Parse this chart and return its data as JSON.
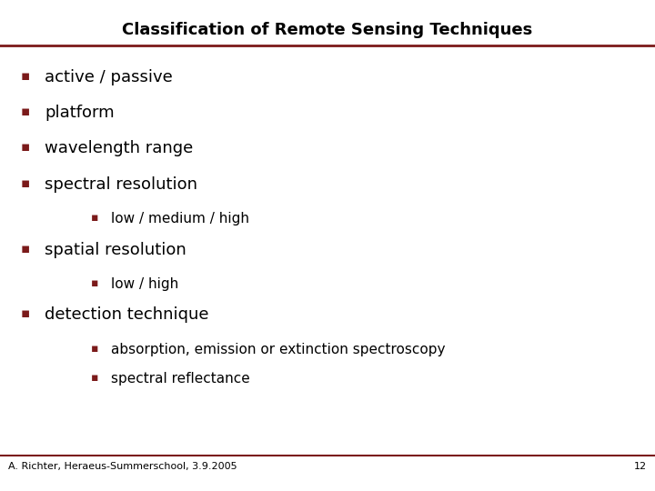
{
  "title": "Classification of Remote Sensing Techniques",
  "title_fontsize": 13,
  "title_fontweight": "bold",
  "title_color": "#000000",
  "title_line_color": "#7B1A1A",
  "background_color": "#ffffff",
  "bullet_color": "#7B1A1A",
  "text_color": "#000000",
  "footer_text": "A. Richter, Heraeus-Summerschool, 3.9.2005",
  "footer_page": "12",
  "footer_color": "#000000",
  "footer_line_color": "#7B1A1A",
  "bullet1_items": [
    "active / passive",
    "platform",
    "wavelength range",
    "spectral resolution"
  ],
  "bullet2_item_spectral": "low / medium / high",
  "bullet1_spatial": "spatial resolution",
  "bullet2_item_spatial": "low / high",
  "bullet1_detection": "detection technique",
  "bullet2_item_detection1": "absorption, emission or extinction spectroscopy",
  "bullet2_item_detection2": "spectral reflectance",
  "main_bullet_fontsize": 13,
  "sub_bullet_fontsize": 11,
  "main_bullet_char": "▪",
  "sub_bullet_char": "▪"
}
